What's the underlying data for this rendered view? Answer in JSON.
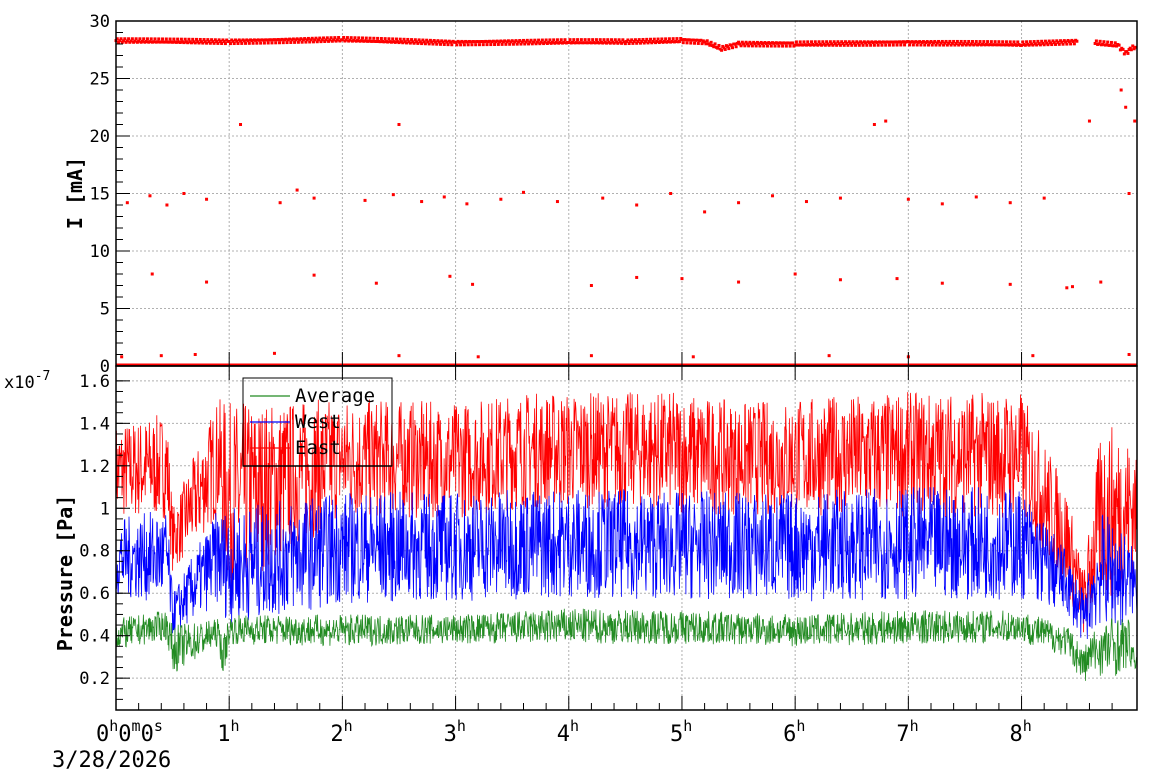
{
  "chart_data": [
    {
      "type": "scatter",
      "ylabel": "I [mA]",
      "ylim": [
        0,
        30
      ],
      "y_ticks": [
        "0",
        "5",
        "10",
        "15",
        "20",
        "25",
        "30"
      ],
      "grid": true,
      "x_range_hours": [
        0,
        9.02
      ],
      "series": [
        {
          "color": "#ff0000",
          "baseline_segments": [
            {
              "x": [
                0.0,
                1.0,
                2.0,
                3.0,
                4.0,
                4.5,
                5.0,
                5.2,
                5.35,
                5.5,
                6.0,
                7.0,
                8.0,
                8.5
              ],
              "y": [
                28.3,
                28.2,
                28.4,
                28.1,
                28.2,
                28.2,
                28.3,
                28.2,
                27.6,
                28.0,
                28.0,
                28.1,
                28.0,
                28.2
              ]
            },
            {
              "x": [
                8.65,
                8.85,
                8.92,
                8.97,
                9.02
              ],
              "y": [
                28.1,
                27.9,
                27.2,
                27.6,
                27.8
              ]
            }
          ],
          "points": [
            {
              "x": 0.1,
              "y": 14.2
            },
            {
              "x": 0.3,
              "y": 14.8
            },
            {
              "x": 0.45,
              "y": 14.0
            },
            {
              "x": 0.6,
              "y": 15.0
            },
            {
              "x": 0.8,
              "y": 14.5
            },
            {
              "x": 1.1,
              "y": 21.0
            },
            {
              "x": 1.45,
              "y": 14.2
            },
            {
              "x": 1.6,
              "y": 15.3
            },
            {
              "x": 1.75,
              "y": 14.6
            },
            {
              "x": 2.2,
              "y": 14.4
            },
            {
              "x": 2.45,
              "y": 14.9
            },
            {
              "x": 2.5,
              "y": 21.0
            },
            {
              "x": 2.7,
              "y": 14.3
            },
            {
              "x": 2.9,
              "y": 14.7
            },
            {
              "x": 3.1,
              "y": 14.1
            },
            {
              "x": 3.4,
              "y": 14.5
            },
            {
              "x": 3.6,
              "y": 15.1
            },
            {
              "x": 3.9,
              "y": 14.3
            },
            {
              "x": 4.3,
              "y": 14.6
            },
            {
              "x": 4.6,
              "y": 14.0
            },
            {
              "x": 4.9,
              "y": 15.0
            },
            {
              "x": 5.2,
              "y": 13.4
            },
            {
              "x": 5.5,
              "y": 14.2
            },
            {
              "x": 5.8,
              "y": 14.8
            },
            {
              "x": 6.1,
              "y": 14.3
            },
            {
              "x": 6.4,
              "y": 14.6
            },
            {
              "x": 6.7,
              "y": 21.0
            },
            {
              "x": 6.8,
              "y": 21.3
            },
            {
              "x": 7.0,
              "y": 14.5
            },
            {
              "x": 7.3,
              "y": 14.1
            },
            {
              "x": 7.6,
              "y": 14.7
            },
            {
              "x": 7.9,
              "y": 14.2
            },
            {
              "x": 8.2,
              "y": 14.6
            },
            {
              "x": 8.6,
              "y": 21.3
            },
            {
              "x": 8.95,
              "y": 15.0
            },
            {
              "x": 9.0,
              "y": 21.3
            },
            {
              "x": 8.88,
              "y": 24.0
            },
            {
              "x": 8.92,
              "y": 22.5
            },
            {
              "x": 0.32,
              "y": 8.0
            },
            {
              "x": 0.8,
              "y": 7.3
            },
            {
              "x": 1.75,
              "y": 7.9
            },
            {
              "x": 2.3,
              "y": 7.2
            },
            {
              "x": 2.95,
              "y": 7.8
            },
            {
              "x": 3.15,
              "y": 7.1
            },
            {
              "x": 4.2,
              "y": 7.0
            },
            {
              "x": 4.6,
              "y": 7.7
            },
            {
              "x": 5.0,
              "y": 7.6
            },
            {
              "x": 5.5,
              "y": 7.3
            },
            {
              "x": 6.0,
              "y": 8.0
            },
            {
              "x": 6.4,
              "y": 7.5
            },
            {
              "x": 6.9,
              "y": 7.6
            },
            {
              "x": 7.3,
              "y": 7.2
            },
            {
              "x": 7.9,
              "y": 7.1
            },
            {
              "x": 8.4,
              "y": 6.8
            },
            {
              "x": 8.45,
              "y": 6.9
            },
            {
              "x": 8.7,
              "y": 7.3
            },
            {
              "x": 0.05,
              "y": 0.8
            },
            {
              "x": 0.4,
              "y": 0.9
            },
            {
              "x": 0.7,
              "y": 1.0
            },
            {
              "x": 1.4,
              "y": 1.1
            },
            {
              "x": 2.5,
              "y": 0.9
            },
            {
              "x": 3.2,
              "y": 0.8
            },
            {
              "x": 4.2,
              "y": 0.9
            },
            {
              "x": 5.1,
              "y": 0.8
            },
            {
              "x": 6.3,
              "y": 0.9
            },
            {
              "x": 7.0,
              "y": 0.8
            },
            {
              "x": 8.1,
              "y": 0.9
            },
            {
              "x": 8.95,
              "y": 1.0
            }
          ]
        }
      ]
    },
    {
      "type": "line",
      "ylabel": "Pressure [Pa]",
      "exponent_label": "x10",
      "exponent_power": "-7",
      "ylim": [
        0.05,
        1.67
      ],
      "y_ticks": [
        "0.2",
        "0.4",
        "0.6",
        "0.8",
        "1",
        "1.2",
        "1.4",
        "1.6"
      ],
      "grid": true,
      "x_range_hours": [
        0,
        9.02
      ],
      "x_ticks": [
        {
          "h": "1",
          "unit": "h"
        },
        {
          "h": "2",
          "unit": "h"
        },
        {
          "h": "3",
          "unit": "h"
        },
        {
          "h": "4",
          "unit": "h"
        },
        {
          "h": "5",
          "unit": "h"
        },
        {
          "h": "6",
          "unit": "h"
        },
        {
          "h": "7",
          "unit": "h"
        },
        {
          "h": "8",
          "unit": "h"
        }
      ],
      "x_origin_label": {
        "parts": [
          "0",
          "h",
          "0",
          "m",
          "0",
          "s"
        ]
      },
      "date_label": "3/28/2026",
      "legend": {
        "position": "top-left",
        "entries": [
          "Average",
          "West",
          "East"
        ]
      },
      "series": [
        {
          "name": "Average",
          "color": "#228b22",
          "x": [
            0,
            0.45,
            0.5,
            0.9,
            0.95,
            1.0,
            2.0,
            3.0,
            4.0,
            5.0,
            6.0,
            7.0,
            8.0,
            8.4,
            8.55,
            8.62,
            8.8,
            8.95,
            9.0,
            9.02
          ],
          "low": [
            0.33,
            0.38,
            0.22,
            0.35,
            0.2,
            0.36,
            0.35,
            0.36,
            0.36,
            0.36,
            0.35,
            0.36,
            0.37,
            0.3,
            0.17,
            0.22,
            0.2,
            0.25,
            0.24,
            0.24
          ],
          "high": [
            0.48,
            0.52,
            0.45,
            0.48,
            0.4,
            0.5,
            0.5,
            0.5,
            0.53,
            0.52,
            0.5,
            0.52,
            0.52,
            0.45,
            0.35,
            0.42,
            0.5,
            0.48,
            0.3,
            0.3
          ]
        },
        {
          "name": "West",
          "color": "#0000ff",
          "x": [
            0,
            0.45,
            0.5,
            0.9,
            1.0,
            2.0,
            3.0,
            4.0,
            5.0,
            6.0,
            7.0,
            8.0,
            8.4,
            8.55,
            8.7,
            8.85,
            9.0,
            9.02
          ],
          "low": [
            0.58,
            0.55,
            0.4,
            0.55,
            0.45,
            0.55,
            0.56,
            0.58,
            0.57,
            0.56,
            0.57,
            0.57,
            0.5,
            0.36,
            0.45,
            0.42,
            0.5,
            0.5
          ],
          "high": [
            0.95,
            1.0,
            0.6,
            1.0,
            1.0,
            1.08,
            1.08,
            1.1,
            1.08,
            1.08,
            1.1,
            1.1,
            0.8,
            0.6,
            0.98,
            0.95,
            0.8,
            0.7
          ]
        },
        {
          "name": "East",
          "color": "#ff0000",
          "x": [
            0,
            0.45,
            0.5,
            0.9,
            1.0,
            2.0,
            3.0,
            3.6,
            4.0,
            4.6,
            5.0,
            5.5,
            6.0,
            7.0,
            8.0,
            8.4,
            8.55,
            8.7,
            8.85,
            9.0,
            9.02
          ],
          "low": [
            0.95,
            0.95,
            0.7,
            0.95,
            0.6,
            0.95,
            0.95,
            1.0,
            1.0,
            1.0,
            0.97,
            0.97,
            0.96,
            0.96,
            0.95,
            0.6,
            0.4,
            0.6,
            0.55,
            0.7,
            0.7
          ],
          "high": [
            1.4,
            1.45,
            1.0,
            1.52,
            1.5,
            1.52,
            1.5,
            1.55,
            1.55,
            1.55,
            1.55,
            1.5,
            1.52,
            1.55,
            1.55,
            1.1,
            0.7,
            1.38,
            1.4,
            1.3,
            1.2
          ]
        }
      ]
    }
  ]
}
